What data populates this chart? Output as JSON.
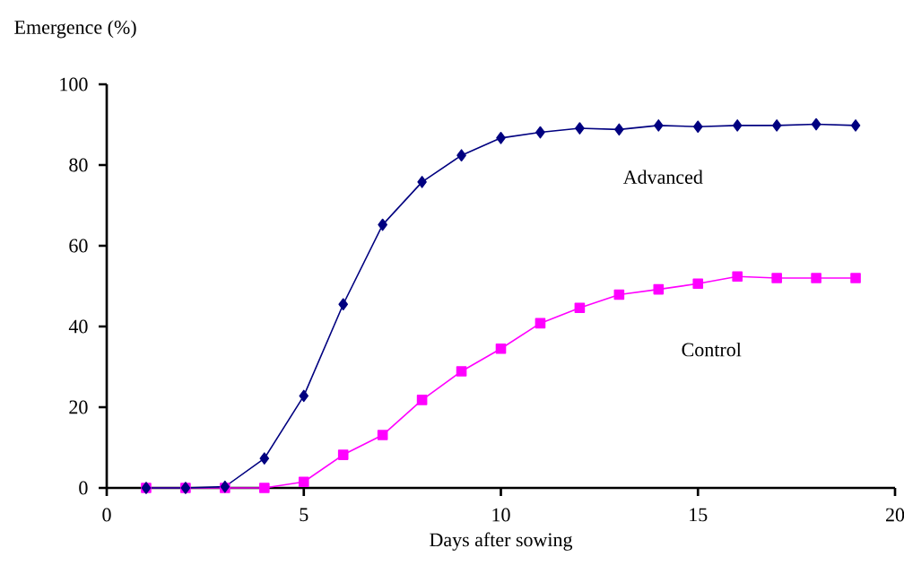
{
  "chart_data": {
    "type": "line",
    "xlabel": "Days after sowing",
    "ylabel": "Emergence (%)",
    "x": [
      1,
      2,
      3,
      4,
      5,
      6,
      7,
      8,
      9,
      10,
      11,
      12,
      13,
      14,
      15,
      16,
      17,
      18,
      19
    ],
    "series": [
      {
        "name": "Advanced",
        "color": "#000080",
        "marker": "diamond",
        "values": [
          0,
          0,
          0.3,
          7.3,
          22.8,
          45.5,
          65.2,
          75.8,
          82.4,
          86.7,
          88.1,
          89.1,
          88.8,
          89.8,
          89.5,
          89.8,
          89.8,
          90.1,
          89.8
        ]
      },
      {
        "name": "Control",
        "color": "#ff00ff",
        "marker": "square",
        "values": [
          0,
          0,
          0,
          0,
          1.5,
          8.2,
          13.1,
          21.8,
          28.9,
          34.5,
          40.8,
          44.6,
          47.9,
          49.2,
          50.6,
          52.4,
          52.0,
          52.0,
          52.0
        ]
      }
    ],
    "xlim": [
      0,
      20
    ],
    "xticks": [
      0,
      5,
      10,
      15,
      20
    ],
    "ylim": [
      0,
      100
    ],
    "yticks": [
      0,
      20,
      40,
      60,
      80,
      100
    ]
  }
}
